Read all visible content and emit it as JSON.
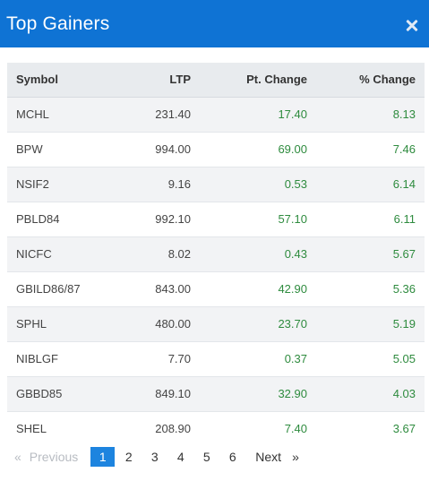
{
  "header": {
    "title": "Top Gainers"
  },
  "table": {
    "columns": [
      "Symbol",
      "LTP",
      "Pt. Change",
      "% Change"
    ],
    "rows": [
      [
        "MCHL",
        "231.40",
        "17.40",
        "8.13"
      ],
      [
        "BPW",
        "994.00",
        "69.00",
        "7.46"
      ],
      [
        "NSIF2",
        "9.16",
        "0.53",
        "6.14"
      ],
      [
        "PBLD84",
        "992.10",
        "57.10",
        "6.11"
      ],
      [
        "NICFC",
        "8.02",
        "0.43",
        "5.67"
      ],
      [
        "GBILD86/87",
        "843.00",
        "42.90",
        "5.36"
      ],
      [
        "SPHL",
        "480.00",
        "23.70",
        "5.19"
      ],
      [
        "NIBLGF",
        "7.70",
        "0.37",
        "5.05"
      ],
      [
        "GBBD85",
        "849.10",
        "32.90",
        "4.03"
      ],
      [
        "SHEL",
        "208.90",
        "7.40",
        "3.67"
      ]
    ]
  },
  "pagination": {
    "prev_arrow": "«",
    "prev_label": "Previous",
    "pages": [
      "1",
      "2",
      "3",
      "4",
      "5",
      "6"
    ],
    "active_page": "1",
    "next_label": "Next",
    "next_arrow": "»"
  },
  "colors": {
    "header_bg": "#0f73d4",
    "positive": "#2e8b3e",
    "active_page_bg": "#1d84df"
  },
  "icons": {
    "close": "close-icon"
  }
}
